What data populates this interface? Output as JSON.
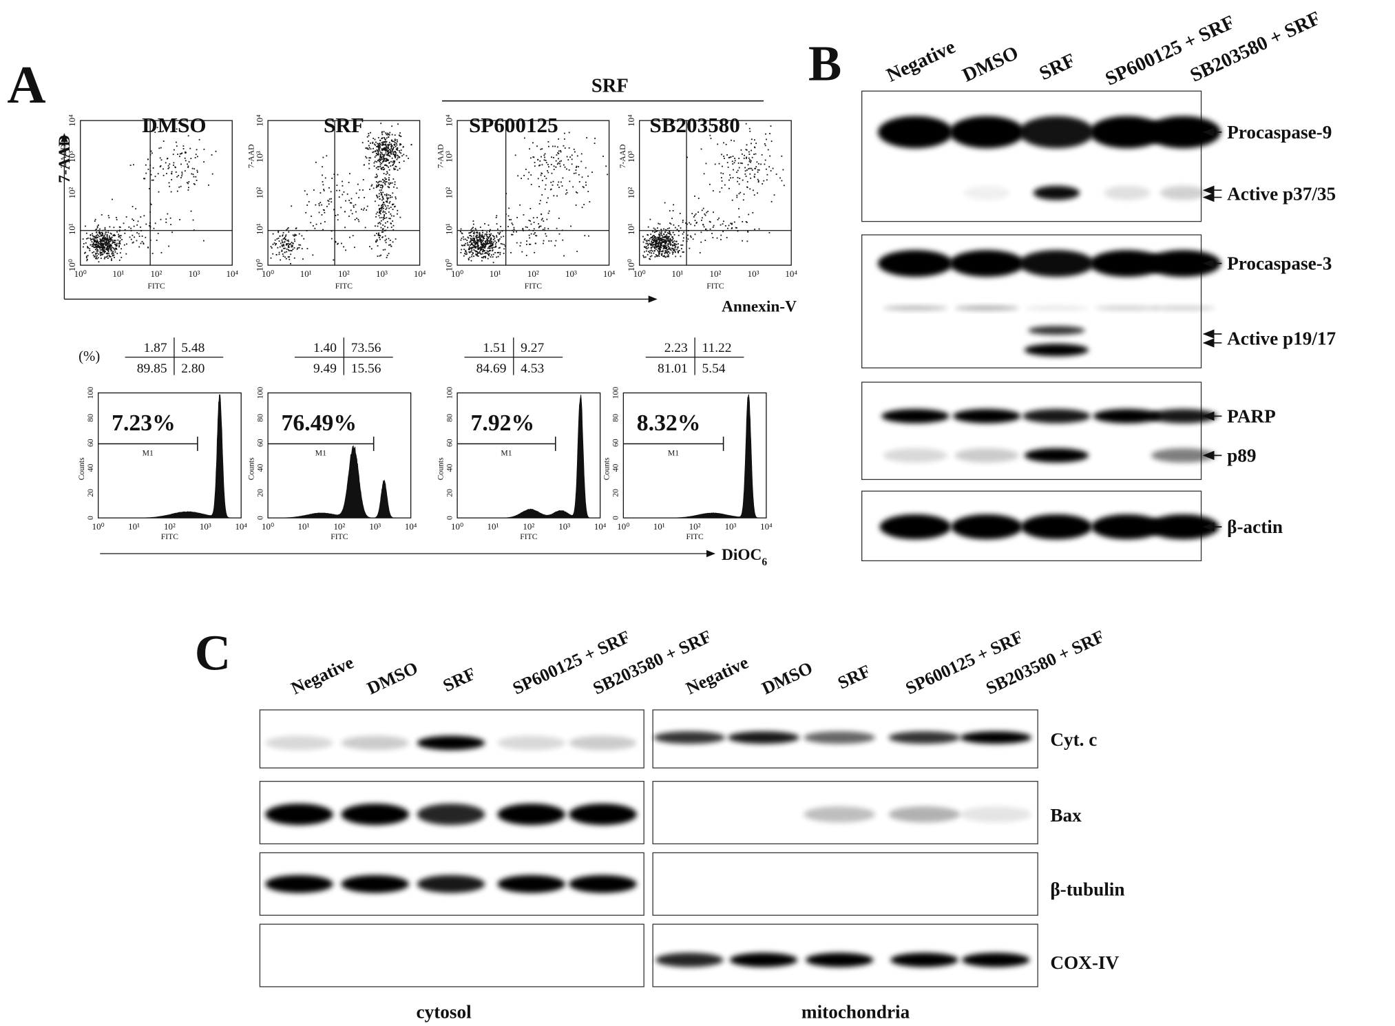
{
  "panel_a": {
    "letter": "A",
    "group_label": "SRF",
    "conditions": [
      "DMSO",
      "SRF",
      "SP600125",
      "SB203580"
    ],
    "scatter_plot_y_label": "7-AAD",
    "scatter_plot_x_label": "FITC",
    "scatter_axis_y": "7-AAD",
    "scatter_axis_x": "Annexin-V",
    "log_ticks": [
      "10⁰",
      "10¹",
      "10²",
      "10³",
      "10⁴"
    ],
    "percent_label": "(%)",
    "quadrants": [
      [
        "1.87",
        "5.48",
        "89.85",
        "2.80"
      ],
      [
        "1.40",
        "73.56",
        "9.49",
        "15.56"
      ],
      [
        "1.51",
        "9.27",
        "84.69",
        "4.53"
      ],
      [
        "2.23",
        "11.22",
        "81.01",
        "5.54"
      ]
    ],
    "hist_y_label": "Counts",
    "hist_x_label": "FITC",
    "hist_yticks": [
      0,
      20,
      40,
      60,
      80,
      100
    ],
    "gate_label": "M1",
    "gate_percents": [
      "7.23%",
      "76.49%",
      "7.92%",
      "8.32%"
    ],
    "hist_axis_label": "DiOC",
    "hist_axis_sub": "6"
  },
  "panel_b": {
    "letter": "B",
    "lanes": [
      "Negative",
      "DMSO",
      "SRF",
      "SP600125 + SRF",
      "SB203580 + SRF"
    ],
    "bands": [
      "Procaspase-9",
      "Active p37/35",
      "Procaspase-3",
      "Active p19/17",
      "PARP",
      "p89",
      "β-actin"
    ]
  },
  "panel_c": {
    "letter": "C",
    "lanes": [
      "Negative",
      "DMSO",
      "SRF",
      "SP600125 + SRF",
      "SB203580 + SRF"
    ],
    "blots": [
      "Cyt. c",
      "Bax",
      "β-tubulin",
      "COX-IV"
    ],
    "fractions": [
      "cytosol",
      "mitochondria"
    ]
  }
}
